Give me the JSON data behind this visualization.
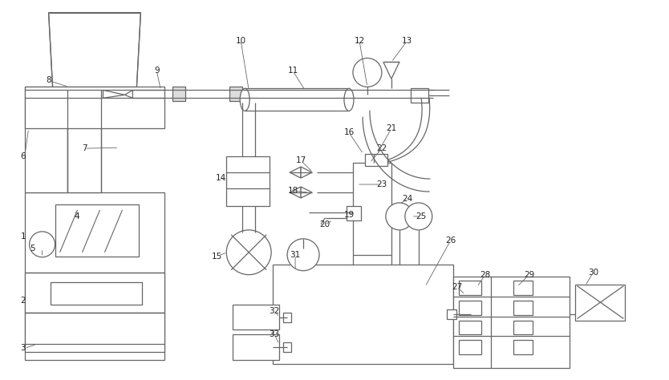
{
  "figsize": [
    8.34,
    4.74
  ],
  "dpi": 100,
  "bg": "#ffffff",
  "lc": "#666666",
  "lw": 0.9,
  "labels": [
    [
      "1",
      28,
      295
    ],
    [
      "2",
      28,
      375
    ],
    [
      "3",
      28,
      435
    ],
    [
      "4",
      95,
      270
    ],
    [
      "5",
      40,
      310
    ],
    [
      "6",
      28,
      195
    ],
    [
      "7",
      105,
      185
    ],
    [
      "8",
      60,
      100
    ],
    [
      "9",
      195,
      88
    ],
    [
      "10",
      300,
      50
    ],
    [
      "11",
      365,
      88
    ],
    [
      "12",
      448,
      50
    ],
    [
      "13",
      508,
      50
    ],
    [
      "14",
      275,
      222
    ],
    [
      "15",
      270,
      320
    ],
    [
      "16",
      435,
      165
    ],
    [
      "17",
      375,
      200
    ],
    [
      "18",
      365,
      238
    ],
    [
      "19",
      435,
      268
    ],
    [
      "20",
      405,
      280
    ],
    [
      "21",
      488,
      160
    ],
    [
      "22",
      476,
      185
    ],
    [
      "23",
      476,
      230
    ],
    [
      "24",
      508,
      248
    ],
    [
      "25",
      525,
      270
    ],
    [
      "26",
      562,
      300
    ],
    [
      "27",
      570,
      358
    ],
    [
      "28",
      605,
      343
    ],
    [
      "29",
      660,
      343
    ],
    [
      "30",
      740,
      340
    ],
    [
      "31",
      368,
      318
    ],
    [
      "32",
      342,
      388
    ],
    [
      "33",
      342,
      418
    ]
  ]
}
